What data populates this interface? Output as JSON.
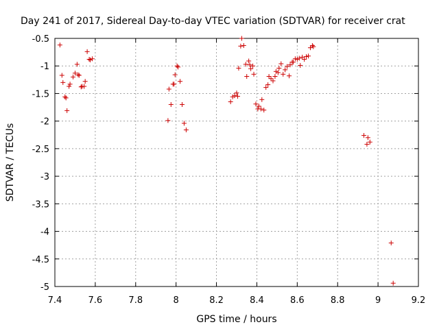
{
  "chart_data": {
    "type": "scatter",
    "title": "Day 241 of 2017, Sidereal Day-to-day VTEC variation (SDTVAR) for receiver crat",
    "xlabel": "GPS time / hours",
    "ylabel": "SDTVAR / TECUs",
    "xlim": [
      7.4,
      9.2
    ],
    "ylim": [
      -5,
      -0.5
    ],
    "xticks": [
      "7.4",
      "7.6",
      "7.8",
      "8",
      "8.2",
      "8.4",
      "8.6",
      "8.8",
      "9",
      "9.2"
    ],
    "yticks": [
      "-0.5",
      "-1",
      "-1.5",
      "-2",
      "-2.5",
      "-3",
      "-3.5",
      "-4",
      "-4.5",
      "-5"
    ],
    "grid": true,
    "marker": "+",
    "color": "#cc0000",
    "series": [
      {
        "name": "SDTVAR",
        "points": [
          [
            7.425,
            -0.62
          ],
          [
            7.435,
            -1.17
          ],
          [
            7.44,
            -1.3
          ],
          [
            7.45,
            -1.56
          ],
          [
            7.455,
            -1.58
          ],
          [
            7.46,
            -1.81
          ],
          [
            7.47,
            -1.37
          ],
          [
            7.475,
            -1.33
          ],
          [
            7.49,
            -1.2
          ],
          [
            7.5,
            -1.13
          ],
          [
            7.51,
            -0.97
          ],
          [
            7.515,
            -1.16
          ],
          [
            7.52,
            -1.17
          ],
          [
            7.53,
            -1.38
          ],
          [
            7.535,
            -1.37
          ],
          [
            7.545,
            -1.37
          ],
          [
            7.55,
            -1.28
          ],
          [
            7.56,
            -0.74
          ],
          [
            7.57,
            -0.88
          ],
          [
            7.575,
            -0.89
          ],
          [
            7.585,
            -0.87
          ],
          [
            7.96,
            -1.99
          ],
          [
            7.965,
            -1.42
          ],
          [
            7.975,
            -1.7
          ],
          [
            7.985,
            -1.33
          ],
          [
            7.99,
            -1.33
          ],
          [
            7.995,
            -1.16
          ],
          [
            8.005,
            -1.0
          ],
          [
            8.01,
            -1.02
          ],
          [
            8.02,
            -1.28
          ],
          [
            8.03,
            -1.7
          ],
          [
            8.04,
            -2.04
          ],
          [
            8.05,
            -2.16
          ],
          [
            8.27,
            -1.65
          ],
          [
            8.28,
            -1.56
          ],
          [
            8.29,
            -1.54
          ],
          [
            8.3,
            -1.49
          ],
          [
            8.305,
            -1.55
          ],
          [
            8.31,
            -1.04
          ],
          [
            8.32,
            -0.64
          ],
          [
            8.325,
            -0.5
          ],
          [
            8.335,
            -0.63
          ],
          [
            8.345,
            -0.97
          ],
          [
            8.35,
            -1.19
          ],
          [
            8.36,
            -0.91
          ],
          [
            8.365,
            -0.98
          ],
          [
            8.37,
            -1.05
          ],
          [
            8.38,
            -1.0
          ],
          [
            8.385,
            -1.15
          ],
          [
            8.395,
            -1.69
          ],
          [
            8.405,
            -1.78
          ],
          [
            8.41,
            -1.73
          ],
          [
            8.42,
            -1.78
          ],
          [
            8.425,
            -1.61
          ],
          [
            8.435,
            -1.8
          ],
          [
            8.445,
            -1.39
          ],
          [
            8.455,
            -1.34
          ],
          [
            8.46,
            -1.19
          ],
          [
            8.47,
            -1.23
          ],
          [
            8.48,
            -1.27
          ],
          [
            8.49,
            -1.19
          ],
          [
            8.495,
            -1.1
          ],
          [
            8.505,
            -1.12
          ],
          [
            8.51,
            -1.04
          ],
          [
            8.52,
            -0.96
          ],
          [
            8.53,
            -1.15
          ],
          [
            8.54,
            -1.07
          ],
          [
            8.55,
            -1.01
          ],
          [
            8.56,
            -1.18
          ],
          [
            8.565,
            -0.98
          ],
          [
            8.575,
            -0.93
          ],
          [
            8.58,
            -0.93
          ],
          [
            8.59,
            -0.87
          ],
          [
            8.6,
            -0.88
          ],
          [
            8.61,
            -0.86
          ],
          [
            8.615,
            -0.99
          ],
          [
            8.625,
            -0.84
          ],
          [
            8.635,
            -0.88
          ],
          [
            8.645,
            -0.83
          ],
          [
            8.655,
            -0.82
          ],
          [
            8.665,
            -0.67
          ],
          [
            8.675,
            -0.63
          ],
          [
            8.68,
            -0.65
          ],
          [
            8.93,
            -2.26
          ],
          [
            8.945,
            -2.42
          ],
          [
            8.95,
            -2.3
          ],
          [
            8.96,
            -2.38
          ],
          [
            9.065,
            -4.21
          ],
          [
            9.075,
            -4.94
          ]
        ]
      }
    ]
  }
}
